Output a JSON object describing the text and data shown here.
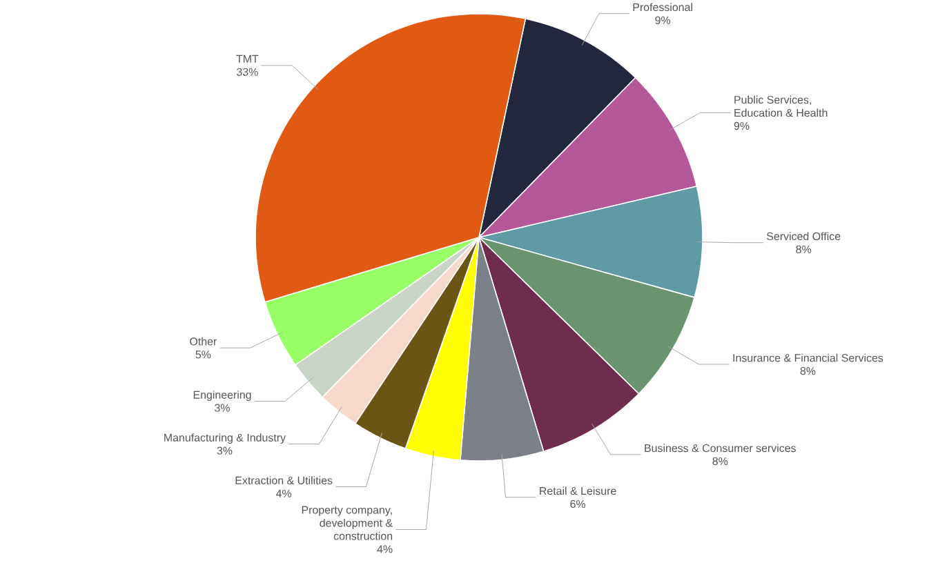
{
  "chart_data": {
    "type": "pie",
    "categories": [
      "Professional",
      "Public Services, Education & Health",
      "Serviced Office",
      "Insurance & Financial Services",
      "Business & Consumer services",
      "Retail & Leisure",
      "Property company, development & construction",
      "Extraction & Utilities",
      "Manufacturing & Industry",
      "Engineering",
      "Other",
      "TMT"
    ],
    "values": [
      9,
      9,
      8,
      8,
      8,
      6,
      4,
      4,
      3,
      3,
      5,
      33
    ],
    "value_labels": [
      "9%",
      "9%",
      "8%",
      "8%",
      "8%",
      "6%",
      "4%",
      "4%",
      "3%",
      "3%",
      "5%",
      "33%"
    ],
    "colors": [
      "#23273d",
      "#b5589a",
      "#5f9aa5",
      "#6a9470",
      "#6e2c4f",
      "#7c8088",
      "#ffff00",
      "#6b5514",
      "#f6d9cb",
      "#c9d5c7",
      "#99ff66",
      "#e05a14"
    ]
  }
}
